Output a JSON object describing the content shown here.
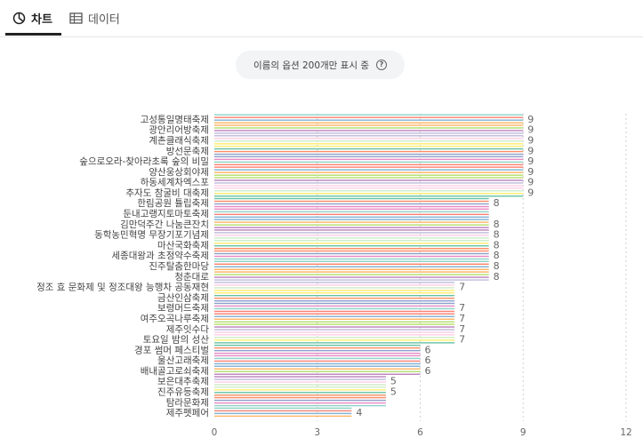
{
  "tabs": [
    {
      "label": "차트",
      "icon": "chart-icon",
      "active": true
    },
    {
      "label": "데이터",
      "icon": "table-icon",
      "active": false
    }
  ],
  "notice": {
    "text": "이름의 옵션 200개만 표시 중",
    "icon": "help-icon"
  },
  "chart_data": {
    "type": "bar",
    "orientation": "horizontal",
    "title": "",
    "xlabel": "",
    "ylabel": "",
    "xlim": [
      0,
      12
    ],
    "xticks": [
      0,
      3,
      6,
      9,
      12
    ],
    "grid": true,
    "categories": [
      "고성통일명태축제",
      "광안리어방축제",
      "계촌클래식축제",
      "방선문축제",
      "숲으로오라-찾아라초록 숲의 비밀",
      "양산웅상회야제",
      "하동세계차엑스포",
      "추자도 참굴비 대축제",
      "한림공원 튤립축제",
      "둔내고랭지토마토축제",
      "김만덕주간 나눔큰잔치",
      "동학농민혁명 무장기포기념제",
      "마산국화축제",
      "세종대왕과 초정약수축제",
      "진주탈춤한마당",
      "청춘대로",
      "정조 효 문화제 및 정조대왕 능행차 공동재현",
      "금산인삼축제",
      "보령머드축제",
      "여주오곡나루축제",
      "제주잇수다",
      "토요일 밤의 성산",
      "경포 썸머 페스티벌",
      "울산고래축제",
      "배내골고로쇠축제",
      "보은대추축제",
      "진주유등축제",
      "탐라문화제",
      "제주펫페어"
    ],
    "values": [
      9,
      9,
      9,
      9,
      9,
      9,
      9,
      9,
      8,
      8,
      8,
      8,
      8,
      8,
      8,
      8,
      7,
      7,
      7,
      7,
      7,
      7,
      6,
      6,
      6,
      5,
      5,
      5,
      4
    ],
    "value_labels": [
      "9",
      "9",
      "9",
      "9",
      "9",
      "9",
      "9",
      "9",
      "8",
      "",
      "8",
      "8",
      "8",
      "8",
      "8",
      "8",
      "7",
      "",
      "7",
      "7",
      "7",
      "7",
      "6",
      "6",
      "6",
      "5",
      "5",
      "",
      "4"
    ],
    "colors": [
      "#8dd3c7",
      "#fb8072",
      "#80b1d3",
      "#fdb462",
      "#b3de69",
      "#bc80bd",
      "#bebada",
      "#fccde5",
      "#ccebc5",
      "#ffed6f",
      "#66c2a5",
      "#fc8d62",
      "#8da0cb",
      "#e78ac3"
    ]
  }
}
